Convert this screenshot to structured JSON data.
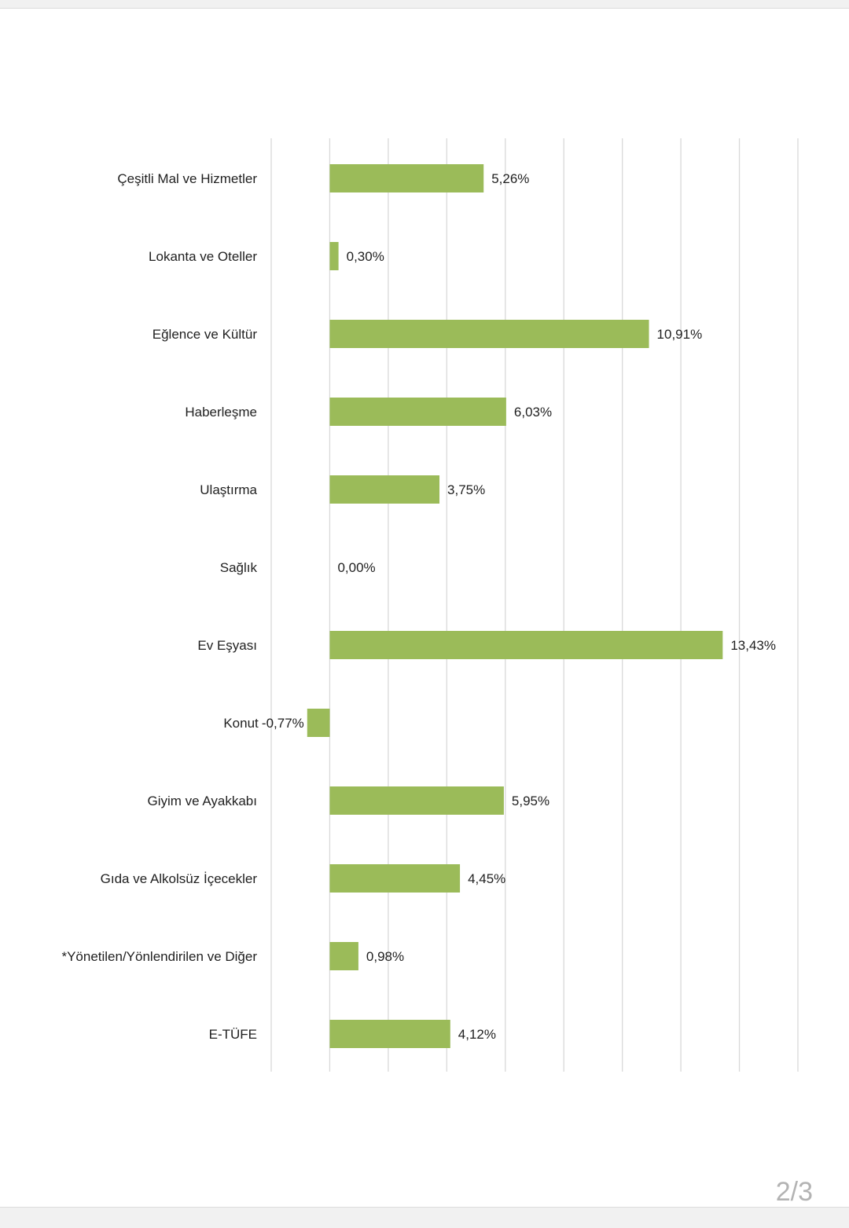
{
  "chart_data": {
    "type": "bar",
    "orientation": "horizontal",
    "categories": [
      "Çeşitli Mal ve Hizmetler",
      "Lokanta ve Oteller",
      "Eğlence ve Kültür",
      "Haberleşme",
      "Ulaştırma",
      "Sağlık",
      "Ev Eşyası",
      "Konut",
      "Giyim ve Ayakkabı",
      "Gıda ve Alkolsüz İçecekler",
      "*Yönetilen/Yönlendirilen ve Diğer",
      "E-TÜFE"
    ],
    "values": [
      5.26,
      0.3,
      10.91,
      6.03,
      3.75,
      0.0,
      13.43,
      -0.77,
      5.95,
      4.45,
      0.98,
      4.12
    ],
    "value_labels": [
      "5,26%",
      "0,30%",
      "10,91%",
      "6,03%",
      "3,75%",
      "0,00%",
      "13,43%",
      "-0,77%",
      "5,95%",
      "4,45%",
      "0,98%",
      "4,12%"
    ],
    "xlim": [
      -2,
      16
    ],
    "grid": true,
    "bar_color": "#9bbb59",
    "gridline_color": "#d9d9d9",
    "title": "",
    "xlabel": "",
    "ylabel": ""
  },
  "page_indicator": "2/3"
}
